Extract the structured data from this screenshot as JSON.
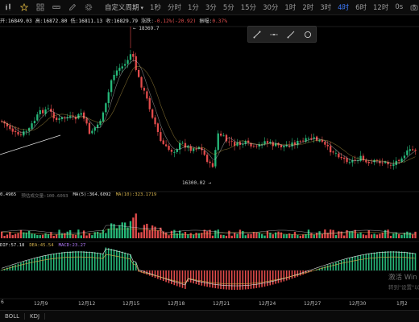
{
  "toolbar": {
    "icons": [
      "candlestick-icon",
      "star-icon",
      "grid-icon",
      "ruler-icon",
      "draw-pencil-icon",
      "settings-icon"
    ],
    "timeframes": [
      {
        "label": "自定义周期",
        "active": false,
        "custom": true
      },
      {
        "label": "1秒",
        "active": false
      },
      {
        "label": "分时",
        "active": false
      },
      {
        "label": "1分",
        "active": false
      },
      {
        "label": "3分",
        "active": false
      },
      {
        "label": "5分",
        "active": false
      },
      {
        "label": "15分",
        "active": false
      },
      {
        "label": "30分",
        "active": false
      },
      {
        "label": "1时",
        "active": false
      },
      {
        "label": "2时",
        "active": false
      },
      {
        "label": "3时",
        "active": false
      },
      {
        "label": "4时",
        "active": true
      },
      {
        "label": "6时",
        "active": false
      },
      {
        "label": "12时",
        "active": false
      }
    ],
    "right_label": "0s"
  },
  "ohlc": {
    "open_label": "开:",
    "open": "16849.03",
    "high_label": "高:",
    "high": "16872.80",
    "low_label": "低:",
    "low": "16811.13",
    "close_label": "收:",
    "close": "16829.79",
    "change_label": "涨跌:",
    "change": "-0.12%(-20.92)",
    "amp_label": "振幅:",
    "amp": "0.37%"
  },
  "annotations": {
    "high_marker": "← 18369.7",
    "low_marker": "16300.02 →"
  },
  "volume_legend": {
    "vol": "0.4965",
    "est_label": "预估成交量:",
    "est": "100.6093",
    "ma5_label": "MA(5):",
    "ma5": "364.6092",
    "ma10_label": "MA(10):",
    "ma10": "323.1719"
  },
  "macd_legend": {
    "dif": "DIF:57.18",
    "dea": "DEA:45.54",
    "macd": "MACD:23.27"
  },
  "x_axis": [
    "6",
    "12月9",
    "12月12",
    "12月15",
    "12月18",
    "12月21",
    "12月24",
    "12月27",
    "12月30",
    "1月2"
  ],
  "bottom_tabs": [
    "BOLL",
    "KDJ"
  ],
  "watermark": {
    "line1": "激活 Win",
    "line2": "转到\"设置\"以"
  },
  "colors": {
    "up": "#26b97a",
    "down": "#e24b4b",
    "ma5": "#e0e0e0",
    "ma10": "#d2b04c",
    "ma_purple": "#b67cff",
    "accent": "#3e7bff"
  }
}
